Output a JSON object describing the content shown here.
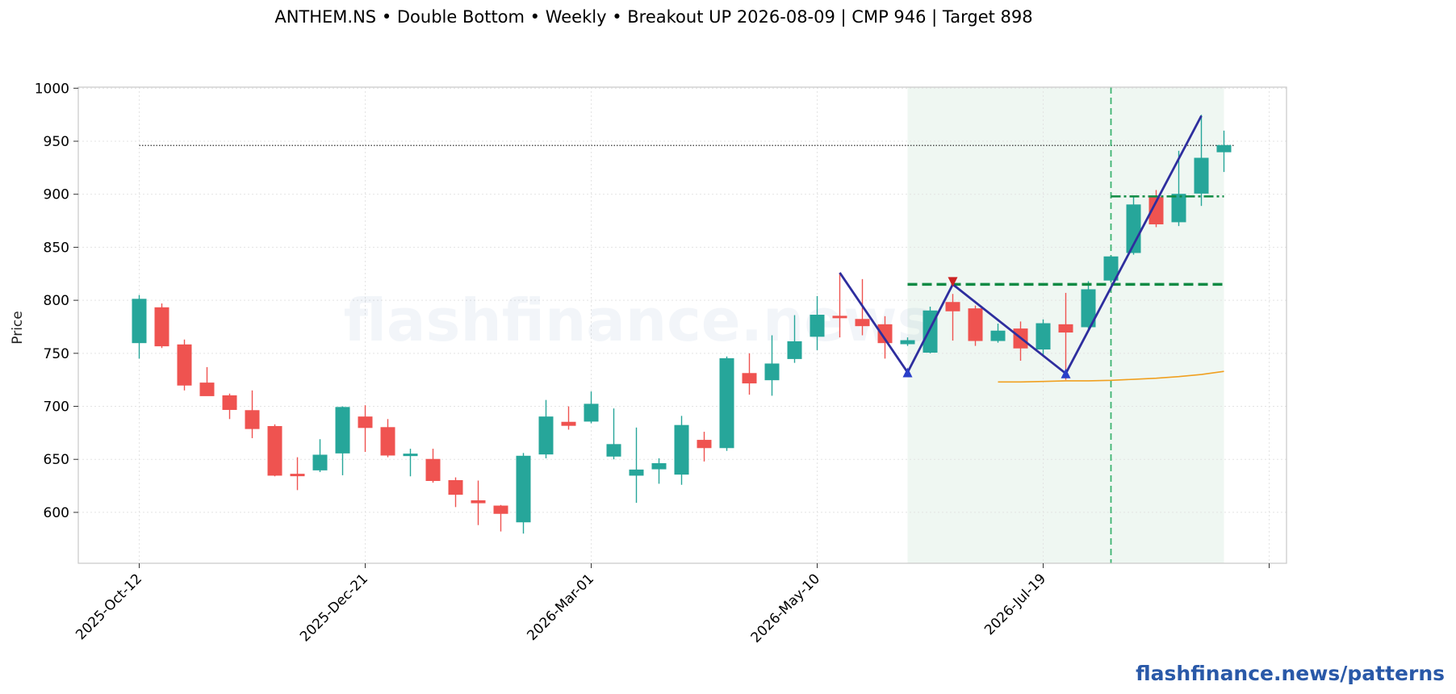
{
  "title": "ANTHEM.NS  •  Double Bottom  •  Weekly  •  Breakout UP 2026-08-09  |  CMP 946  |  Target 898",
  "watermark": "flashfinance.news",
  "footer": "flashfinance.news/patterns",
  "colors": {
    "up": "#26a69a",
    "down": "#ef5350",
    "pattern_line": "#2e2e9e",
    "neckline": "#0f8a43",
    "target_line": "#0f8a43",
    "ma_line": "#f0a020",
    "cmp_line": "#333333",
    "zone_fill": "#e8f4ec",
    "breakout_line": "#3cb371",
    "grid": "#e3e3e3"
  },
  "chart_data": {
    "type": "candlestick",
    "ylabel": "Price",
    "xlabel": "",
    "ylim": [
      552,
      1001
    ],
    "yticks": [
      600,
      650,
      700,
      750,
      800,
      850,
      900,
      950,
      1000
    ],
    "xtick_labels": [
      "2025-Oct-12",
      "2025-Dec-21",
      "2026-Mar-01",
      "2026-May-10",
      "2026-Jul-19"
    ],
    "xtick_index": [
      0,
      10,
      20,
      30,
      40
    ],
    "grid": true,
    "candles": [
      {
        "date": "2025-Oct-12",
        "o": 760,
        "h": 805,
        "l": 745,
        "c": 801
      },
      {
        "date": "2025-Oct-19",
        "o": 793,
        "h": 797,
        "l": 755,
        "c": 757
      },
      {
        "date": "2025-Oct-26",
        "o": 758,
        "h": 763,
        "l": 715,
        "c": 720
      },
      {
        "date": "2025-Nov-02",
        "o": 722,
        "h": 737,
        "l": 710,
        "c": 710
      },
      {
        "date": "2025-Nov-09",
        "o": 710,
        "h": 712,
        "l": 688,
        "c": 697
      },
      {
        "date": "2025-Nov-16",
        "o": 696,
        "h": 715,
        "l": 670,
        "c": 679
      },
      {
        "date": "2025-Nov-23",
        "o": 681,
        "h": 683,
        "l": 634,
        "c": 635
      },
      {
        "date": "2025-Nov-30",
        "o": 636,
        "h": 652,
        "l": 621,
        "c": 635
      },
      {
        "date": "2025-Dec-07",
        "o": 640,
        "h": 669,
        "l": 638,
        "c": 654
      },
      {
        "date": "2025-Dec-14",
        "o": 656,
        "h": 700,
        "l": 635,
        "c": 699
      },
      {
        "date": "2025-Dec-21",
        "o": 690,
        "h": 701,
        "l": 657,
        "c": 680
      },
      {
        "date": "2025-Dec-28",
        "o": 680,
        "h": 688,
        "l": 652,
        "c": 654
      },
      {
        "date": "2026-Jan-04",
        "o": 654,
        "h": 660,
        "l": 634,
        "c": 655
      },
      {
        "date": "2026-Jan-11",
        "o": 650,
        "h": 660,
        "l": 628,
        "c": 630
      },
      {
        "date": "2026-Jan-18",
        "o": 630,
        "h": 633,
        "l": 605,
        "c": 617
      },
      {
        "date": "2026-Jan-25",
        "o": 611,
        "h": 630,
        "l": 588,
        "c": 609
      },
      {
        "date": "2026-Feb-01",
        "o": 606,
        "h": 607,
        "l": 582,
        "c": 599
      },
      {
        "date": "2026-Feb-08",
        "o": 591,
        "h": 656,
        "l": 580,
        "c": 653
      },
      {
        "date": "2026-Feb-15",
        "o": 655,
        "h": 706,
        "l": 651,
        "c": 690
      },
      {
        "date": "2026-Feb-22",
        "o": 685,
        "h": 700,
        "l": 678,
        "c": 682
      },
      {
        "date": "2026-Mar-01",
        "o": 686,
        "h": 714,
        "l": 684,
        "c": 702
      },
      {
        "date": "2026-Mar-08",
        "o": 653,
        "h": 698,
        "l": 650,
        "c": 664
      },
      {
        "date": "2026-Mar-15",
        "o": 635,
        "h": 680,
        "l": 609,
        "c": 640
      },
      {
        "date": "2026-Mar-22",
        "o": 641,
        "h": 651,
        "l": 627,
        "c": 646
      },
      {
        "date": "2026-Mar-29",
        "o": 636,
        "h": 691,
        "l": 626,
        "c": 682
      },
      {
        "date": "2026-Apr-05",
        "o": 668,
        "h": 676,
        "l": 648,
        "c": 661
      },
      {
        "date": "2026-Apr-12",
        "o": 661,
        "h": 747,
        "l": 658,
        "c": 745
      },
      {
        "date": "2026-Apr-19",
        "o": 731,
        "h": 750,
        "l": 711,
        "c": 722
      },
      {
        "date": "2026-Apr-26",
        "o": 725,
        "h": 767,
        "l": 710,
        "c": 740
      },
      {
        "date": "2026-May-03",
        "o": 745,
        "h": 786,
        "l": 741,
        "c": 761
      },
      {
        "date": "2026-May-10",
        "o": 766,
        "h": 804,
        "l": 753,
        "c": 786
      },
      {
        "date": "2026-May-17",
        "o": 785,
        "h": 826,
        "l": 765,
        "c": 784
      },
      {
        "date": "2026-May-24",
        "o": 782,
        "h": 820,
        "l": 767,
        "c": 776
      },
      {
        "date": "2026-May-31",
        "o": 777,
        "h": 785,
        "l": 745,
        "c": 760
      },
      {
        "date": "2026-Jun-07",
        "o": 759,
        "h": 765,
        "l": 757,
        "c": 762
      },
      {
        "date": "2026-Jun-14",
        "o": 751,
        "h": 794,
        "l": 750,
        "c": 790
      },
      {
        "date": "2026-Jun-21",
        "o": 798,
        "h": 806,
        "l": 762,
        "c": 790
      },
      {
        "date": "2026-Jun-28",
        "o": 792,
        "h": 795,
        "l": 757,
        "c": 762
      },
      {
        "date": "2026-Jul-05",
        "o": 762,
        "h": 778,
        "l": 760,
        "c": 771
      },
      {
        "date": "2026-Jul-12",
        "o": 773,
        "h": 780,
        "l": 743,
        "c": 755
      },
      {
        "date": "2026-Jul-19",
        "o": 754,
        "h": 782,
        "l": 748,
        "c": 778
      },
      {
        "date": "2026-Jul-26",
        "o": 777,
        "h": 807,
        "l": 725,
        "c": 770
      },
      {
        "date": "2026-Aug-02",
        "o": 775,
        "h": 818,
        "l": 773,
        "c": 810
      },
      {
        "date": "2026-Aug-09",
        "o": 819,
        "h": 842,
        "l": 817,
        "c": 841
      },
      {
        "date": "2026-Aug-16",
        "o": 845,
        "h": 898,
        "l": 843,
        "c": 890
      },
      {
        "date": "2026-Aug-23",
        "o": 897,
        "h": 904,
        "l": 869,
        "c": 872
      },
      {
        "date": "2026-Aug-30",
        "o": 874,
        "h": 941,
        "l": 870,
        "c": 900
      },
      {
        "date": "2026-Sep-06",
        "o": 901,
        "h": 975,
        "l": 889,
        "c": 934
      },
      {
        "date": "2026-Sep-13",
        "o": 940,
        "h": 960,
        "l": 921,
        "c": 946
      }
    ],
    "pattern_points": [
      {
        "i": 31,
        "v": 826
      },
      {
        "i": 34,
        "v": 732
      },
      {
        "i": 36,
        "v": 815
      },
      {
        "i": 41,
        "v": 731
      },
      {
        "i": 47,
        "v": 974
      }
    ],
    "troughs": [
      {
        "i": 34,
        "v": 732
      },
      {
        "i": 41,
        "v": 731
      }
    ],
    "peak_marker": {
      "i": 36,
      "v": 815
    },
    "neckline": 815,
    "target": 898,
    "cmp": 946,
    "breakout_index": 43,
    "pattern_zone": [
      34,
      48
    ],
    "moving_average": [
      {
        "i": 38,
        "v": 723
      },
      {
        "i": 39,
        "v": 723
      },
      {
        "i": 40,
        "v": 723.5
      },
      {
        "i": 41,
        "v": 724
      },
      {
        "i": 42,
        "v": 724
      },
      {
        "i": 43,
        "v": 724.5
      },
      {
        "i": 44,
        "v": 725.5
      },
      {
        "i": 45,
        "v": 726.5
      },
      {
        "i": 46,
        "v": 728
      },
      {
        "i": 47,
        "v": 730
      },
      {
        "i": 48,
        "v": 733
      }
    ]
  }
}
